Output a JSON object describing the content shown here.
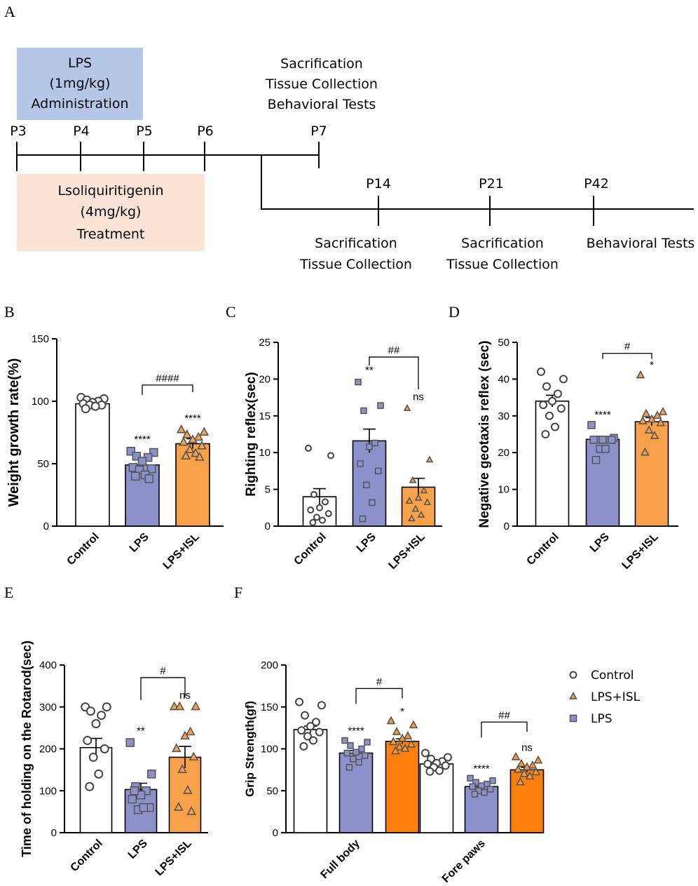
{
  "panel_letters": {
    "A": "A",
    "B": "B",
    "C": "C",
    "D": "D",
    "E": "E",
    "F": "F"
  },
  "timeline": {
    "lps_box": [
      "LPS",
      "(1mg/kg)",
      "Administration"
    ],
    "isl_box": [
      "Lsoliquiritigenin",
      "(4mg/kg)",
      "Treatment"
    ],
    "days_upper": [
      "P3",
      "P4",
      "P5",
      "P6",
      "P7"
    ],
    "days_lower": [
      "P14",
      "P21",
      "P42"
    ],
    "p7_events": [
      "Sacrification",
      "Tissue Collection",
      "Behavioral Tests"
    ],
    "p14_events": [
      "Sacrification",
      "Tissue Collection"
    ],
    "p21_events": [
      "Sacrification",
      "Tissue Collection"
    ],
    "p42_events": [
      "Behavioral Tests"
    ],
    "colors": {
      "lps_box": "#b4c7e7",
      "isl_box": "#fbe3d6"
    }
  },
  "colors": {
    "control": "#ffffff",
    "lps": "#8c91cc",
    "lps_isl": "#f7a24a",
    "lps_isl_f": "#ff7f0e",
    "lps_marker": "#555555",
    "isl_marker": "#cc7a00"
  },
  "chart_data": [
    {
      "id": "B",
      "type": "bar",
      "title": "",
      "ylabel": "Weight growth rate(%)",
      "ylim": [
        0,
        150
      ],
      "yticks": [
        0,
        50,
        100,
        150
      ],
      "categories": [
        "Control",
        "LPS",
        "LPS+ISL"
      ],
      "means": [
        98,
        49,
        66
      ],
      "sem": [
        1.5,
        4,
        4
      ],
      "points": [
        [
          103,
          102,
          101,
          100,
          99,
          98,
          97,
          97,
          96,
          94
        ],
        [
          60,
          59,
          56,
          55,
          52,
          47,
          46,
          45,
          41,
          40,
          38
        ],
        [
          77,
          75,
          73,
          71,
          69,
          67,
          64,
          61,
          58,
          56,
          55
        ]
      ],
      "significance": [
        "",
        "****",
        "****"
      ],
      "brackets": [
        {
          "from": 1,
          "to": 2,
          "label": "####",
          "y": 113
        }
      ]
    },
    {
      "id": "C",
      "type": "bar",
      "title": "",
      "ylabel": "Righting reflex(sec)",
      "ylim": [
        0,
        25
      ],
      "yticks": [
        0,
        5,
        10,
        15,
        20,
        25
      ],
      "categories": [
        "Control",
        "LPS",
        "LPS+ISL"
      ],
      "means": [
        4,
        11.6,
        5.3
      ],
      "sem": [
        1.1,
        1.6,
        1.2
      ],
      "points": [
        [
          10.6,
          9.6,
          4.3,
          3.3,
          2.5,
          2.2,
          1.7,
          1.2,
          0.8,
          0.5
        ],
        [
          19.6,
          16.4,
          15.7,
          11.3,
          10.8,
          8.5,
          7.5,
          5.6,
          3.2,
          1.0
        ],
        [
          16.0,
          9.0,
          6.2,
          4.8,
          3.8,
          3.4,
          3.2,
          2.3,
          1.5,
          1.0
        ]
      ],
      "significance": [
        "",
        "**",
        "ns"
      ],
      "brackets": [
        {
          "from": 1,
          "to": 2,
          "label": "##",
          "y": 23
        }
      ]
    },
    {
      "id": "D",
      "type": "bar",
      "title": "",
      "ylabel": "Negative geotaxis reflex (sec)",
      "ylim": [
        0,
        50
      ],
      "yticks": [
        0,
        10,
        20,
        30,
        40,
        50
      ],
      "categories": [
        "Control",
        "LPS",
        "LPS+ISL"
      ],
      "means": [
        34,
        23.6,
        28.4
      ],
      "sem": [
        1.6,
        0.5,
        1.1
      ],
      "points": [
        [
          42,
          40,
          38,
          36,
          34,
          33,
          32,
          30,
          27,
          25
        ],
        [
          27.5,
          24,
          23.5,
          23.5,
          23.5,
          23.5,
          23.5,
          21,
          21,
          18
        ],
        [
          41,
          31,
          30.5,
          30,
          29,
          28.5,
          28,
          26,
          24.5,
          20
        ]
      ],
      "significance": [
        "",
        "****",
        "*"
      ],
      "brackets": [
        {
          "from": 1,
          "to": 2,
          "label": "#",
          "y": 47
        }
      ]
    },
    {
      "id": "E",
      "type": "bar",
      "title": "",
      "ylabel": "Time of holding on the Rotarod(sec)",
      "ylim": [
        0,
        400
      ],
      "yticks": [
        0,
        100,
        200,
        300,
        400
      ],
      "categories": [
        "Control",
        "LPS",
        "LPS+ISL"
      ],
      "means": [
        203,
        103,
        180
      ],
      "sem": [
        22,
        15,
        26
      ],
      "points": [
        [
          300,
          300,
          290,
          280,
          260,
          220,
          200,
          180,
          140,
          110
        ],
        [
          215,
          140,
          110,
          100,
          90,
          80,
          60,
          55,
          60,
          100
        ],
        [
          300,
          300,
          300,
          240,
          230,
          200,
          180,
          150,
          100,
          60,
          50
        ]
      ],
      "significance": [
        "",
        "**",
        "ns"
      ],
      "brackets": [
        {
          "from": 1,
          "to": 2,
          "label": "#",
          "y": 370
        }
      ]
    },
    {
      "id": "F",
      "type": "grouped-bar",
      "title": "",
      "ylabel": "Grip Strength(gf)",
      "ylim": [
        0,
        200
      ],
      "yticks": [
        0,
        50,
        100,
        150,
        200
      ],
      "categories": [
        "Full body",
        "Fore paws"
      ],
      "series": [
        {
          "name": "Control",
          "means": [
            123,
            82
          ],
          "sem": [
            4,
            2
          ],
          "points": [
            [
              156,
              152,
              140,
              132,
              127,
              122,
              120,
              115,
              110,
              103
            ],
            [
              95,
              90,
              88,
              85,
              83,
              82,
              80,
              78,
              74,
              73
            ]
          ]
        },
        {
          "name": "LPS",
          "means": [
            95,
            55
          ],
          "sem": [
            3,
            2
          ],
          "points": [
            [
              110,
              108,
              104,
              100,
              96,
              95,
              92,
              88,
              84,
              78
            ],
            [
              65,
              62,
              60,
              58,
              56,
              55,
              52,
              50,
              48,
              46
            ]
          ]
        },
        {
          "name": "LPS+ISL",
          "means": [
            109,
            75
          ],
          "sem": [
            3,
            3
          ],
          "points": [
            [
              133,
              128,
              120,
              115,
              112,
              108,
              105,
              102,
              100,
              97
            ],
            [
              90,
              86,
              82,
              80,
              78,
              75,
              72,
              70,
              67,
              60
            ]
          ]
        }
      ],
      "significance": [
        [
          "",
          "****",
          "*"
        ],
        [
          "",
          "****",
          "ns"
        ]
      ],
      "brackets": [
        {
          "group": 0,
          "label": "#",
          "y": 172
        },
        {
          "group": 1,
          "label": "##",
          "y": 132
        }
      ],
      "legend": {
        "placement": "top-right",
        "entries": [
          "Control",
          "LPS+ISL",
          "LPS"
        ]
      }
    }
  ]
}
